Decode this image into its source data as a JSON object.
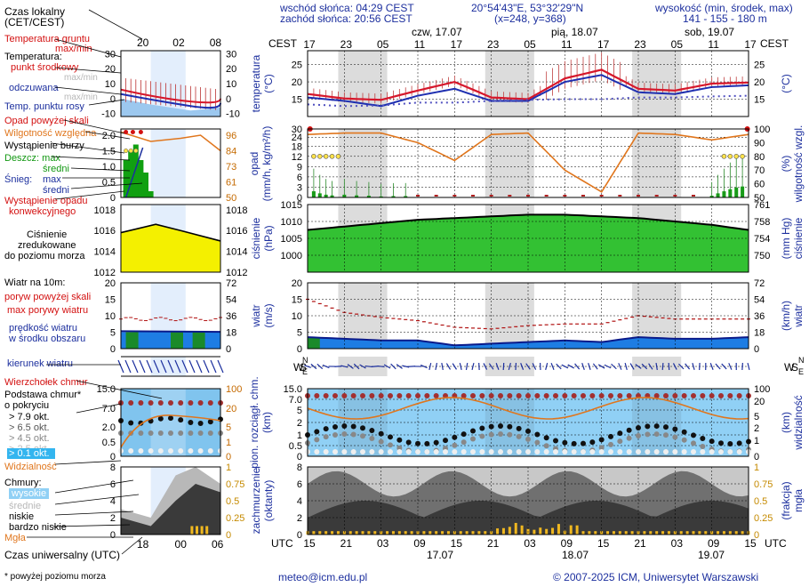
{
  "header": {
    "sunrise": "wschód słońca: 04:29 CEST",
    "sunset": "zachód słońca: 20:56 CEST",
    "coords": "20°54'43\"E, 53°32'29\"N",
    "grid": "(x=248, y=368)",
    "altitude_label": "wysokość (min, środek, max)",
    "altitude_values": "141 - 155 - 180 m",
    "days_top": [
      "czw, 17.07",
      "pią, 18.07",
      "sob, 19.07"
    ],
    "days_bottom": [
      "17.07",
      "18.07",
      "19.07"
    ],
    "cest_label": "CEST",
    "utc_label": "UTC",
    "hours_top": [
      "17",
      "23",
      "05",
      "11",
      "17",
      "23",
      "05",
      "11",
      "17",
      "23",
      "05",
      "11",
      "17"
    ],
    "hours_bottom": [
      "15",
      "21",
      "03",
      "09",
      "15",
      "21",
      "03",
      "09",
      "15",
      "21",
      "03",
      "09",
      "15"
    ]
  },
  "left": {
    "local_time": "Czas lokalny",
    "local_time_sub": "(CET/CEST)",
    "legend_hours_top": [
      "20",
      "02",
      "08"
    ],
    "legend_hours_bottom": [
      "18",
      "00",
      "06"
    ],
    "ground_temp": "Temperatura gruntu",
    "ground_temp_sub": "max/min",
    "temperature": "Temperatura:",
    "mid_point": "punkt środkowy",
    "max_min": "max/min",
    "perceived": "odczuwana",
    "perceived_sub": "max/min",
    "dew_point": "Temp. punktu rosy",
    "rain_above": "Opad powyżej skali",
    "humidity": "Wilgotność względna",
    "storm": "Wystąpienie burzy",
    "rain": "Deszcz: max",
    "rain_mid": "średni",
    "snow": "Śnieg:",
    "snow_max": "max",
    "snow_mid": "średni",
    "conv_rain": "Wystąpienie opadu",
    "conv_rain_sub": "konwekcyjnego",
    "pressure": "Ciśnienie",
    "pressure_sub1": "zredukowane",
    "pressure_sub2": "do poziomu morza",
    "wind_title": "Wiatr na 10m:",
    "gust_above": "poryw powyżej skali",
    "gust_max": "max porywy wiatru",
    "wind_speed": "prędkość wiatru",
    "wind_speed_sub": "w środku obszaru",
    "wind_dir": "kierunek wiatru",
    "cloud_top": "Wierzchołek chmur",
    "cloud_base": "Podstawa chmur*",
    "cloud_base_sub": "o pokryciu",
    "okt": [
      "> 7.9 okt.",
      "> 6.5 okt.",
      "> 4.5 okt.",
      "> 2.5 okt.",
      "> 0.1 okt."
    ],
    "visibility": "Widzialność",
    "clouds": "Chmury:",
    "cloud_high": "wysokie",
    "cloud_mid": "średnie",
    "cloud_low": "niskie",
    "cloud_vlow": "bardzo niskie",
    "fog": "Mgła",
    "utc_time": "Czas uniwersalny (UTC)",
    "footnote": "* powyżej poziomu morza"
  },
  "axes": {
    "temp": {
      "label": "temperatura",
      "unit": "(°C)",
      "ticks": [
        15,
        20,
        25
      ],
      "mini_ticks": [
        30,
        20,
        10,
        0,
        -10
      ]
    },
    "rain": {
      "label": "opad",
      "unit": "(mm/h, kg/m²/h)",
      "ticks": [
        0,
        3,
        6,
        9,
        12,
        18,
        24,
        30
      ],
      "right_label": "wilgotność wzgl.",
      "right_unit": "(%)",
      "right_ticks": [
        50,
        60,
        70,
        80,
        90,
        100
      ],
      "mini_ticks": [
        "2.0",
        "1.5",
        "1.0",
        "0.5",
        "0"
      ],
      "mini_right": [
        96,
        84,
        73,
        61,
        50
      ]
    },
    "pressure": {
      "label": "ciśnienie",
      "unit": "(hPa)",
      "ticks": [
        1000,
        1005,
        1010,
        1015
      ],
      "right_label": "ciśnienie",
      "right_unit": "(mm Hg)",
      "right_ticks": [
        750,
        754,
        758,
        761
      ],
      "mini_ticks": [
        1018,
        1016,
        1014,
        1012
      ]
    },
    "wind": {
      "label": "wiatr",
      "unit": "(m/s)",
      "ticks": [
        0,
        5,
        10,
        15,
        20
      ],
      "right_label": "wiatr",
      "right_unit": "(km/h)",
      "right_ticks": [
        0,
        18,
        36,
        54,
        72
      ],
      "mini_ticks": [
        20,
        15,
        10,
        5,
        0
      ]
    },
    "dir": {
      "compass": [
        "W",
        "S",
        "N",
        "E"
      ]
    },
    "cloudbase": {
      "label": "pion. rozciągł. chm.",
      "unit": "(km)",
      "ticks": [
        "0",
        "0.5",
        "1",
        "2",
        "5",
        "7.0",
        "15.0"
      ],
      "right_label": "widzialność",
      "right_unit": "(km)",
      "right_ticks": [
        "0",
        "1",
        "2",
        "5",
        "20",
        "100"
      ],
      "mini_left": [
        "15.0",
        "7.0",
        "2.0",
        "0.5",
        "0"
      ]
    },
    "cloudcover": {
      "label": "zachmurzenie",
      "unit": "(oktanty)",
      "ticks": [
        0,
        2,
        4,
        6,
        8
      ],
      "right_label": "mgła",
      "right_unit": "(frakcja)",
      "right_ticks": [
        "0",
        "0.25",
        "0.5",
        "0.75",
        "1"
      ]
    }
  },
  "footer": {
    "email": "meteo@icm.edu.pl",
    "copyright": "© 2007-2025 ICM, Uniwersytet Warszawski"
  },
  "colors": {
    "night": "#dcdcdc",
    "temp": "#d6172b",
    "perceived": "#1e2fb0",
    "humidity": "#e0761d",
    "pressure_fill": "#33c133",
    "wind_fill": "#1e7de3",
    "cloud_sky": "#90d0f5",
    "cloud_dark": "#3a3a3a"
  },
  "chart_data": [
    {
      "type": "line",
      "title": "temperatura",
      "ylabel": "temperatura (°C)",
      "ylim": [
        10,
        29
      ],
      "x_hours": [
        0,
        6,
        12,
        18,
        24,
        30,
        36,
        42,
        48,
        54,
        60,
        66,
        72
      ],
      "series": [
        {
          "name": "punkt środkowy",
          "values": [
            16.5,
            15.2,
            14.8,
            17.5,
            20.0,
            15.5,
            15.0,
            21.0,
            23.5,
            18.0,
            17.5,
            19.5,
            19.8
          ]
        },
        {
          "name": "odczuwana",
          "values": [
            15.5,
            14.5,
            13.0,
            16.0,
            18.0,
            14.5,
            14.5,
            20.0,
            22.0,
            17.0,
            16.5,
            18.5,
            19.0
          ]
        },
        {
          "name": "Temp. punktu rosy",
          "values": [
            13.5,
            13.0,
            13.2,
            14.0,
            14.0,
            14.5,
            14.8,
            15.0,
            15.0,
            15.5,
            15.5,
            15.8,
            16.0
          ]
        }
      ]
    },
    {
      "type": "line",
      "title": "ciśnienie",
      "ylabel": "ciśnienie (hPa)",
      "ylim": [
        995,
        1015
      ],
      "x_hours": [
        0,
        6,
        12,
        18,
        24,
        30,
        36,
        42,
        48,
        54,
        60,
        66,
        72
      ],
      "series": [
        {
          "name": "Ciśnienie",
          "values": [
            1007.5,
            1008.5,
            1009.5,
            1010.5,
            1011.0,
            1011.5,
            1012.0,
            1012.0,
            1011.5,
            1011.0,
            1010.0,
            1009.0,
            1007.5
          ]
        }
      ]
    },
    {
      "type": "line",
      "title": "wilgotność",
      "ylabel": "wilgotność wzgl. (%)",
      "ylim": [
        50,
        100
      ],
      "x_hours": [
        0,
        6,
        12,
        18,
        24,
        30,
        36,
        42,
        48,
        54,
        60,
        66,
        72
      ],
      "series": [
        {
          "name": "Wilgotność względna",
          "values": [
            96,
            97,
            97,
            90,
            77,
            96,
            97,
            70,
            54,
            97,
            96,
            92,
            96
          ]
        }
      ]
    },
    {
      "type": "line",
      "title": "wiatr",
      "ylabel": "wiatr (m/s)",
      "ylim": [
        0,
        20
      ],
      "x_hours": [
        0,
        6,
        12,
        18,
        24,
        30,
        36,
        42,
        48,
        54,
        60,
        66,
        72
      ],
      "series": [
        {
          "name": "prędkość wiatru",
          "values": [
            3.5,
            3.0,
            2.5,
            2.5,
            1.0,
            1.5,
            2.0,
            2.5,
            2.0,
            3.5,
            3.0,
            3.0,
            3.5
          ]
        },
        {
          "name": "max porywy wiatru",
          "values": [
            15,
            11,
            9.5,
            8.5,
            6.5,
            6.0,
            7.0,
            7.5,
            7.5,
            10,
            9,
            9,
            9
          ]
        }
      ]
    }
  ]
}
